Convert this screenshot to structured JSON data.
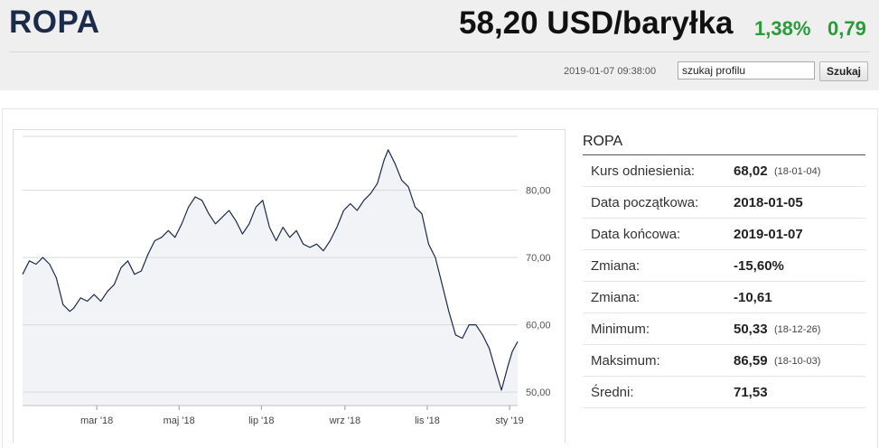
{
  "header": {
    "title": "ROPA",
    "price": "58,20 USD/baryłka",
    "change_pct": "1,38%",
    "change_abs": "0,79",
    "timestamp": "2019-01-07 09:38:00",
    "search_placeholder": "szukaj profilu",
    "search_button": "Szukaj",
    "positive_color": "#2a9a3a"
  },
  "stats": {
    "title": "ROPA",
    "rows": [
      {
        "label": "Kurs odniesienia:",
        "value": "68,02",
        "date": "(18-01-04)"
      },
      {
        "label": "Data początkowa:",
        "value": "2018-01-05",
        "date": ""
      },
      {
        "label": "Data końcowa:",
        "value": "2019-01-07",
        "date": ""
      },
      {
        "label": "Zmiana:",
        "value": "-15,60%",
        "date": ""
      },
      {
        "label": "Zmiana:",
        "value": "-10,61",
        "date": ""
      },
      {
        "label": "Minimum:",
        "value": "50,33",
        "date": "(18-12-26)"
      },
      {
        "label": "Maksimum:",
        "value": "86,59",
        "date": "(18-10-03)"
      },
      {
        "label": "Średni:",
        "value": "71,53",
        "date": ""
      }
    ]
  },
  "chart_data": {
    "type": "area",
    "title": "",
    "xlabel": "",
    "ylabel": "",
    "ylim": [
      48,
      88
    ],
    "yticks": [
      50,
      60,
      70,
      80
    ],
    "ytick_labels": [
      "50,00",
      "60,00",
      "70,00",
      "80,00"
    ],
    "xlim": [
      "2018-01-05",
      "2019-01-07"
    ],
    "xticks": [
      "2018-03-01",
      "2018-05-01",
      "2018-07-01",
      "2018-09-01",
      "2018-11-01",
      "2019-01-01"
    ],
    "xtick_labels": [
      "mar '18",
      "maj '18",
      "lip '18",
      "wrz '18",
      "lis '18",
      "sty '19"
    ],
    "grid": true,
    "line_color": "#1c2b4a",
    "fill_color": "#f2f3f6",
    "series": [
      {
        "x": [
          "2018-01-05",
          "2018-01-10",
          "2018-01-15",
          "2018-01-20",
          "2018-01-25",
          "2018-01-30",
          "2018-02-04",
          "2018-02-09",
          "2018-02-12",
          "2018-02-17",
          "2018-02-22",
          "2018-02-27",
          "2018-03-04",
          "2018-03-09",
          "2018-03-14",
          "2018-03-19",
          "2018-03-24",
          "2018-03-29",
          "2018-04-03",
          "2018-04-08",
          "2018-04-13",
          "2018-04-18",
          "2018-04-23",
          "2018-04-28",
          "2018-05-03",
          "2018-05-08",
          "2018-05-13",
          "2018-05-18",
          "2018-05-23",
          "2018-05-28",
          "2018-06-02",
          "2018-06-07",
          "2018-06-12",
          "2018-06-17",
          "2018-06-22",
          "2018-06-27",
          "2018-07-02",
          "2018-07-07",
          "2018-07-12",
          "2018-07-17",
          "2018-07-22",
          "2018-07-27",
          "2018-08-01",
          "2018-08-06",
          "2018-08-11",
          "2018-08-16",
          "2018-08-21",
          "2018-08-26",
          "2018-08-31",
          "2018-09-05",
          "2018-09-10",
          "2018-09-15",
          "2018-09-20",
          "2018-09-25",
          "2018-09-30",
          "2018-10-03",
          "2018-10-08",
          "2018-10-13",
          "2018-10-18",
          "2018-10-23",
          "2018-10-28",
          "2018-11-02",
          "2018-11-07",
          "2018-11-12",
          "2018-11-17",
          "2018-11-22",
          "2018-11-27",
          "2018-12-02",
          "2018-12-07",
          "2018-12-12",
          "2018-12-17",
          "2018-12-22",
          "2018-12-26",
          "2018-12-31",
          "2019-01-03",
          "2019-01-07"
        ],
        "values": [
          67.5,
          69.5,
          69.0,
          70.0,
          69.0,
          67.0,
          63.0,
          62.0,
          62.5,
          64.0,
          63.5,
          64.5,
          63.5,
          65.0,
          66.0,
          68.5,
          69.5,
          67.5,
          68.0,
          70.5,
          72.5,
          73.0,
          74.0,
          73.0,
          75.0,
          77.5,
          79.0,
          78.5,
          76.5,
          75.0,
          76.0,
          77.0,
          75.5,
          73.5,
          75.0,
          77.5,
          78.5,
          74.5,
          72.5,
          74.5,
          73.0,
          74.0,
          72.0,
          71.5,
          72.0,
          71.0,
          72.5,
          74.5,
          77.0,
          78.0,
          77.0,
          78.5,
          79.5,
          81.0,
          84.5,
          86.0,
          84.0,
          81.5,
          80.5,
          77.5,
          76.5,
          72.0,
          70.0,
          66.0,
          62.0,
          58.5,
          58.0,
          60.0,
          60.0,
          58.5,
          56.5,
          53.0,
          50.3,
          54.0,
          56.0,
          57.5
        ]
      }
    ]
  }
}
